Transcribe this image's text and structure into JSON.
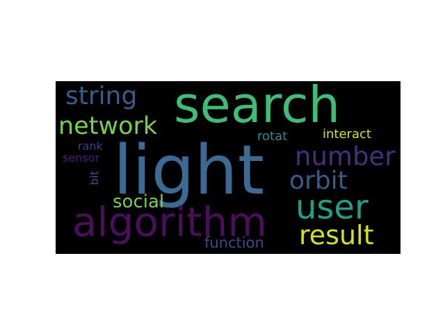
{
  "words": [
    {
      "id": "search",
      "text": "search",
      "color": "#3dbd75"
    },
    {
      "id": "light",
      "text": "light",
      "color": "#3b6b95"
    },
    {
      "id": "algorithm",
      "text": "algorithm",
      "color": "#4a0f5b"
    },
    {
      "id": "network",
      "text": "network",
      "color": "#7ad151"
    },
    {
      "id": "string",
      "text": "string",
      "color": "#355e8d"
    },
    {
      "id": "number",
      "text": "number",
      "color": "#46307c"
    },
    {
      "id": "orbit",
      "text": "orbit",
      "color": "#3a5a8a"
    },
    {
      "id": "user",
      "text": "user",
      "color": "#1fa08a"
    },
    {
      "id": "result",
      "text": "result",
      "color": "#d4e21a"
    },
    {
      "id": "social",
      "text": "social",
      "color": "#76d154"
    },
    {
      "id": "function",
      "text": "function",
      "color": "#3e4a89"
    },
    {
      "id": "rotat",
      "text": "rotat",
      "color": "#2b8c8c"
    },
    {
      "id": "interact",
      "text": "interact",
      "color": "#d8e219"
    },
    {
      "id": "rank",
      "text": "rank",
      "color": "#433e85"
    },
    {
      "id": "sensor",
      "text": "sensor",
      "color": "#482071"
    },
    {
      "id": "bit",
      "text": "bit",
      "color": "#3b528b"
    }
  ]
}
